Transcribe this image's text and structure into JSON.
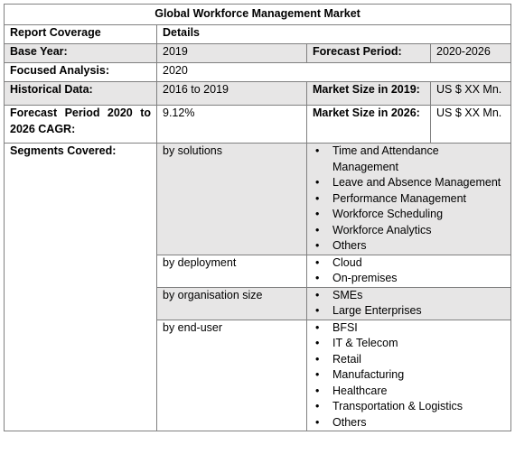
{
  "title": "Global Workforce Management Market",
  "header": {
    "coverage": "Report Coverage",
    "details": "Details"
  },
  "base_year": {
    "label": "Base Year:",
    "value": "2019",
    "forecast_label": "Forecast Period:",
    "forecast_value": "2020-2026"
  },
  "focused": {
    "label": "Focused Analysis:",
    "value": "2020"
  },
  "historical": {
    "label": "Historical Data:",
    "value": "2016 to 2019",
    "size2019_label": "Market Size in 2019:",
    "size2019_value": "US $ XX Mn."
  },
  "cagr": {
    "label": "Forecast Period 2020 to 2026 CAGR:",
    "value": "9.12%",
    "size2026_label": "Market Size in 2026:",
    "size2026_value": "US $ XX Mn."
  },
  "segments": {
    "label": "Segments Covered:",
    "groups": [
      {
        "name": "by solutions",
        "items": [
          "Time and Attendance Management",
          "Leave and Absence Management",
          "Performance Management",
          "Workforce Scheduling",
          "Workforce Analytics",
          "Others"
        ]
      },
      {
        "name": "by deployment",
        "items": [
          "Cloud",
          "On-premises"
        ]
      },
      {
        "name": "by organisation size",
        "items": [
          "SMEs",
          "Large Enterprises"
        ]
      },
      {
        "name": "by end-user",
        "items": [
          "BFSI",
          "IT & Telecom",
          "Retail",
          "Manufacturing",
          "Healthcare",
          "Transportation & Logistics",
          "Others"
        ]
      }
    ]
  },
  "bullet": "•"
}
